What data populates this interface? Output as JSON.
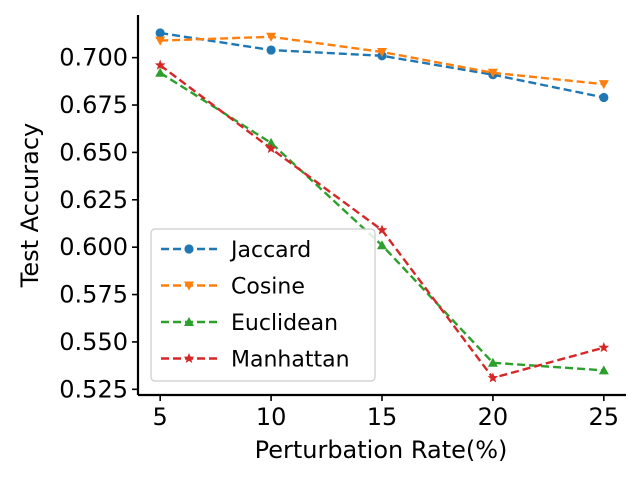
{
  "chart_data": {
    "type": "line",
    "title": "",
    "xlabel": "Perturbation Rate(%)",
    "ylabel": "Test Accuracy",
    "x": [
      5,
      10,
      15,
      20,
      25
    ],
    "x_tick_labels": [
      "5",
      "10",
      "15",
      "20",
      "25"
    ],
    "y_ticks": [
      0.525,
      0.55,
      0.575,
      0.6,
      0.625,
      0.65,
      0.675,
      0.7
    ],
    "y_tick_labels": [
      "0.525",
      "0.550",
      "0.575",
      "0.600",
      "0.625",
      "0.650",
      "0.675",
      "0.700"
    ],
    "xlim": [
      4.0,
      26.0
    ],
    "ylim": [
      0.522,
      0.7225
    ],
    "grid": false,
    "legend_position": "lower-left",
    "line_style": "dashed",
    "series": [
      {
        "name": "Jaccard",
        "values": [
          0.713,
          0.704,
          0.701,
          0.691,
          0.679
        ],
        "color": "#1f77b4",
        "marker": "circle"
      },
      {
        "name": "Cosine",
        "values": [
          0.709,
          0.711,
          0.703,
          0.692,
          0.686
        ],
        "color": "#ff7f0e",
        "marker": "triangle-down"
      },
      {
        "name": "Euclidean",
        "values": [
          0.692,
          0.655,
          0.601,
          0.539,
          0.535
        ],
        "color": "#2ca02c",
        "marker": "triangle-up"
      },
      {
        "name": "Manhattan",
        "values": [
          0.696,
          0.652,
          0.609,
          0.531,
          0.547
        ],
        "color": "#d62728",
        "marker": "star"
      }
    ]
  }
}
